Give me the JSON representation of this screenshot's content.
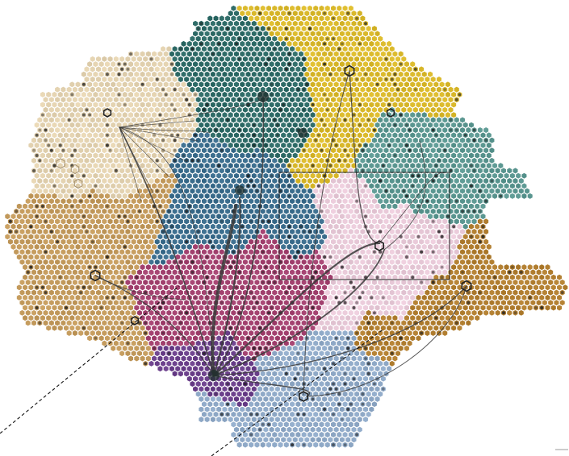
{
  "diagram": {
    "type": "hexbin-cluster-map",
    "clusters": [
      {
        "id": "yellow",
        "color": "#d9b82a"
      },
      {
        "id": "dark-teal",
        "color": "#2d6a66"
      },
      {
        "id": "cream",
        "color": "#e3d2b0"
      },
      {
        "id": "tan",
        "color": "#c39a5c"
      },
      {
        "id": "steel-blue",
        "color": "#3a6c8c"
      },
      {
        "id": "sea-green",
        "color": "#5a9690"
      },
      {
        "id": "pink",
        "color": "#e8c9d8"
      },
      {
        "id": "magenta",
        "color": "#a3416f"
      },
      {
        "id": "brown",
        "color": "#b17e30"
      },
      {
        "id": "light-blue",
        "color": "#8fa9c7"
      },
      {
        "id": "purple",
        "color": "#6a3f8a"
      }
    ],
    "background": "#ffffff"
  }
}
